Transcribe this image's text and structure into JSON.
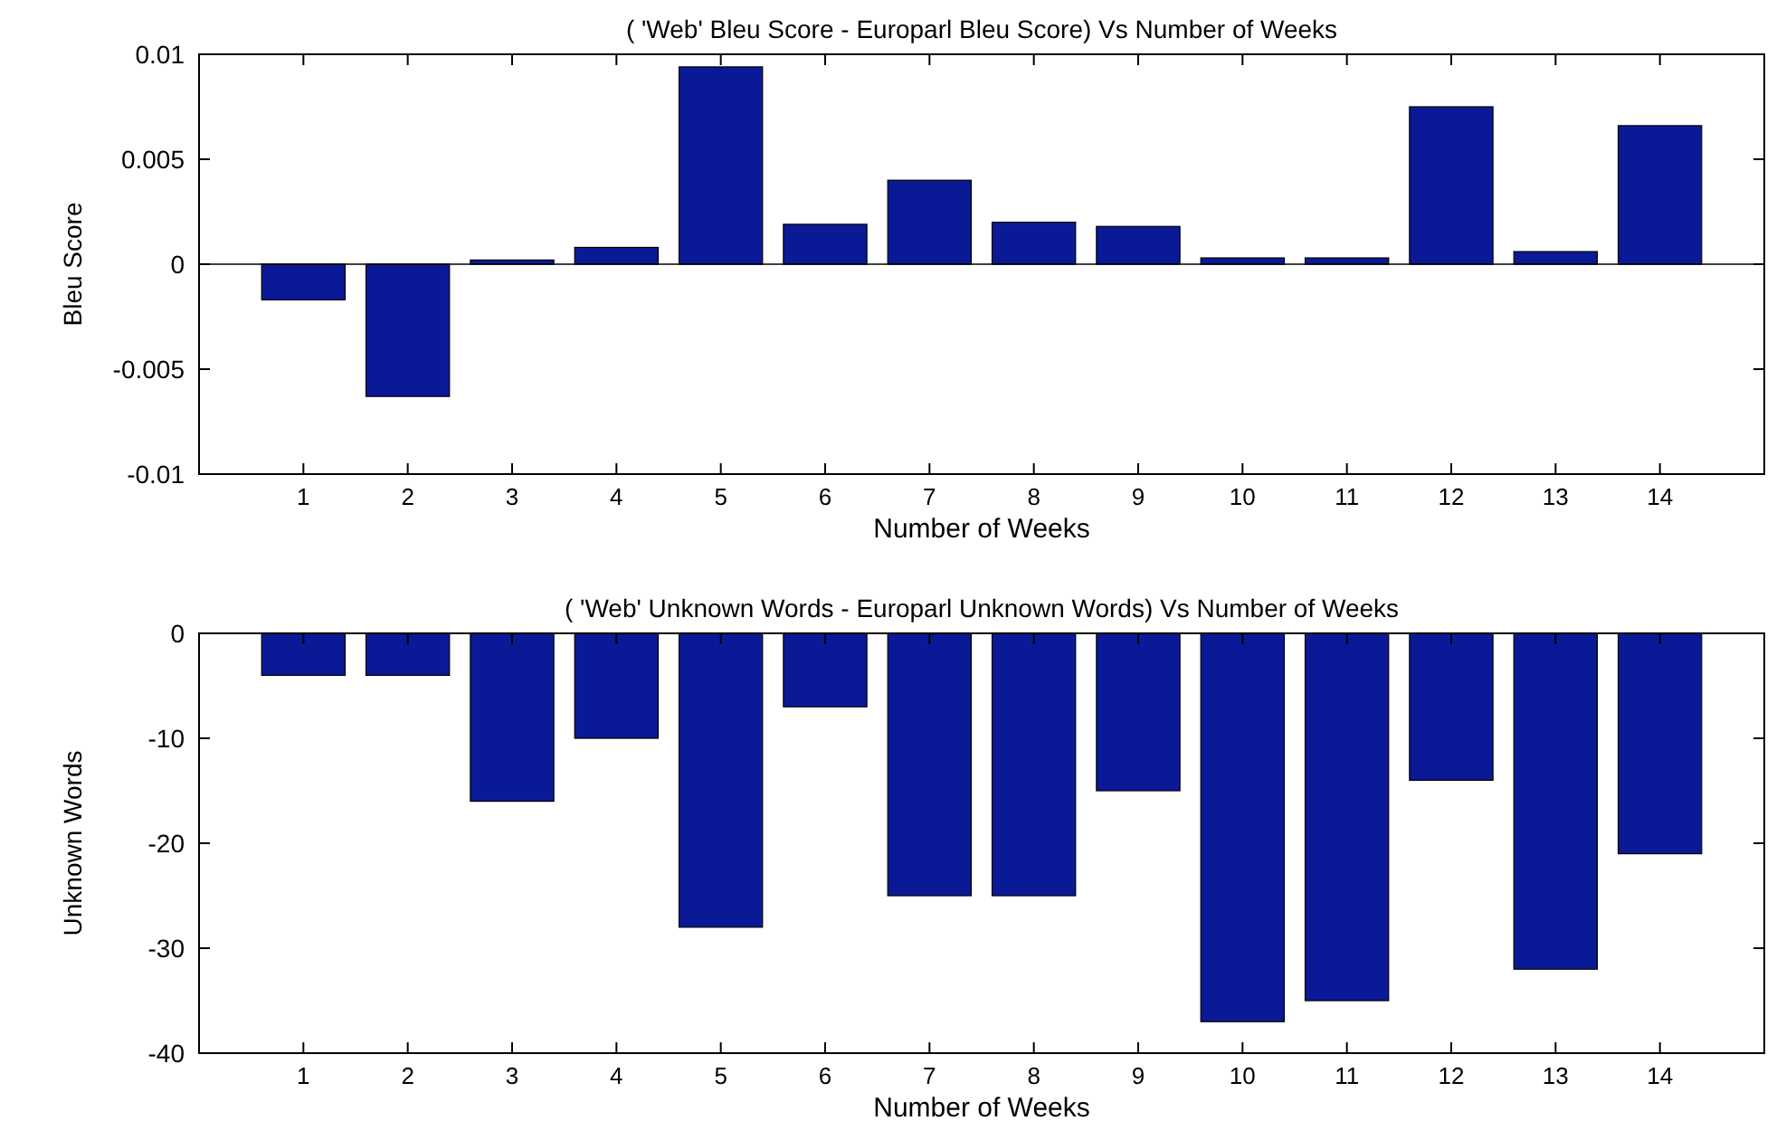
{
  "chart_data": [
    {
      "type": "bar",
      "title": "( 'Web' Bleu Score - Europarl Bleu Score) Vs Number of Weeks",
      "xlabel": "Number of Weeks",
      "ylabel": "Bleu Score",
      "x": [
        1,
        2,
        3,
        4,
        5,
        6,
        7,
        8,
        9,
        10,
        11,
        12,
        13,
        14
      ],
      "series": [
        {
          "color": "#0a1a96",
          "values": [
            -0.0017,
            -0.0063,
            0.0002,
            0.0008,
            0.0094,
            0.0019,
            0.004,
            0.002,
            0.0018,
            0.0003,
            0.0003,
            0.0075,
            0.0006,
            0.0066
          ]
        }
      ],
      "xlim": [
        0,
        15
      ],
      "xticks": [
        1,
        2,
        3,
        4,
        5,
        6,
        7,
        8,
        9,
        10,
        11,
        12,
        13,
        14
      ],
      "ylim": [
        -0.01,
        0.01
      ],
      "yticks": [
        -0.01,
        -0.005,
        0,
        0.005,
        0.01
      ]
    },
    {
      "type": "bar",
      "title": "( 'Web' Unknown Words - Europarl Unknown Words) Vs Number of Weeks",
      "xlabel": "Number of Weeks",
      "ylabel": "Unknown Words",
      "x": [
        1,
        2,
        3,
        4,
        5,
        6,
        7,
        8,
        9,
        10,
        11,
        12,
        13,
        14
      ],
      "series": [
        {
          "color": "#0a1a96",
          "values": [
            -4,
            -4,
            -16,
            -10,
            -28,
            -7,
            -25,
            -25,
            -15,
            -37,
            -35,
            -14,
            -32,
            -21
          ]
        }
      ],
      "xlim": [
        0,
        15
      ],
      "xticks": [
        1,
        2,
        3,
        4,
        5,
        6,
        7,
        8,
        9,
        10,
        11,
        12,
        13,
        14
      ],
      "ylim": [
        -40,
        0
      ],
      "yticks": [
        -40,
        -30,
        -20,
        -10,
        0
      ]
    }
  ]
}
